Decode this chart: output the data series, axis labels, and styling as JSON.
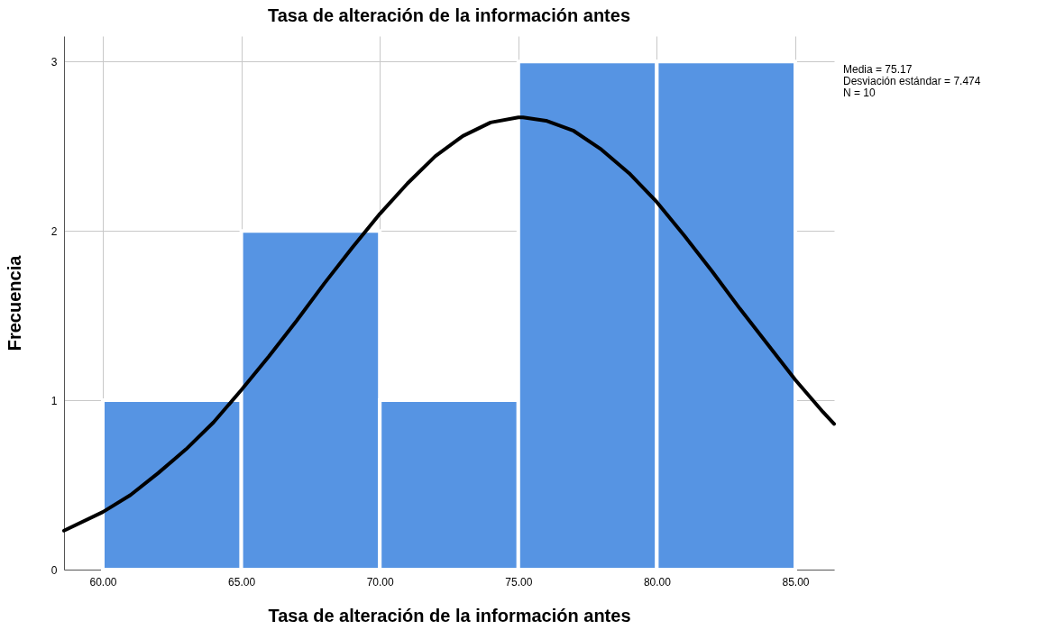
{
  "chart_data": {
    "type": "histogram",
    "title": "Tasa de alteración de la información antes",
    "xlabel": "Tasa de alteración de la información antes",
    "ylabel": "Frecuencia",
    "bins": [
      60,
      65,
      70,
      75,
      80,
      85
    ],
    "series": [
      {
        "type": "histogram",
        "color": "#5694e3",
        "values": [
          1,
          2,
          1,
          3,
          3
        ]
      },
      {
        "type": "line",
        "color": "#000000",
        "x": [
          58.6,
          60,
          61,
          62,
          63,
          64,
          65,
          66,
          67,
          68,
          69,
          70,
          71,
          72,
          73,
          74,
          75,
          75.17,
          76,
          77,
          78,
          79,
          80,
          81,
          82,
          83,
          84,
          85,
          86,
          86.4
        ],
        "values": [
          0.23,
          0.34,
          0.44,
          0.57,
          0.71,
          0.87,
          1.06,
          1.26,
          1.47,
          1.69,
          1.9,
          2.1,
          2.28,
          2.44,
          2.56,
          2.64,
          2.67,
          2.67,
          2.65,
          2.59,
          2.48,
          2.34,
          2.17,
          1.97,
          1.76,
          1.54,
          1.33,
          1.12,
          0.93,
          0.86
        ]
      }
    ],
    "xlim": [
      58.6,
      86.4
    ],
    "xticks": [
      {
        "value": 60,
        "label": "60.00"
      },
      {
        "value": 65,
        "label": "65.00"
      },
      {
        "value": 70,
        "label": "70.00"
      },
      {
        "value": 75,
        "label": "75.00"
      },
      {
        "value": 80,
        "label": "80.00"
      },
      {
        "value": 85,
        "label": "85.00"
      }
    ],
    "ylim": [
      0,
      3.15
    ],
    "yticks": [
      0,
      1,
      2,
      3
    ],
    "grid": true,
    "line_style": "solid",
    "marker": "none",
    "annotations": [
      "Media = 75.17",
      "Desviación estándar = 7.474",
      "N = 10"
    ]
  }
}
